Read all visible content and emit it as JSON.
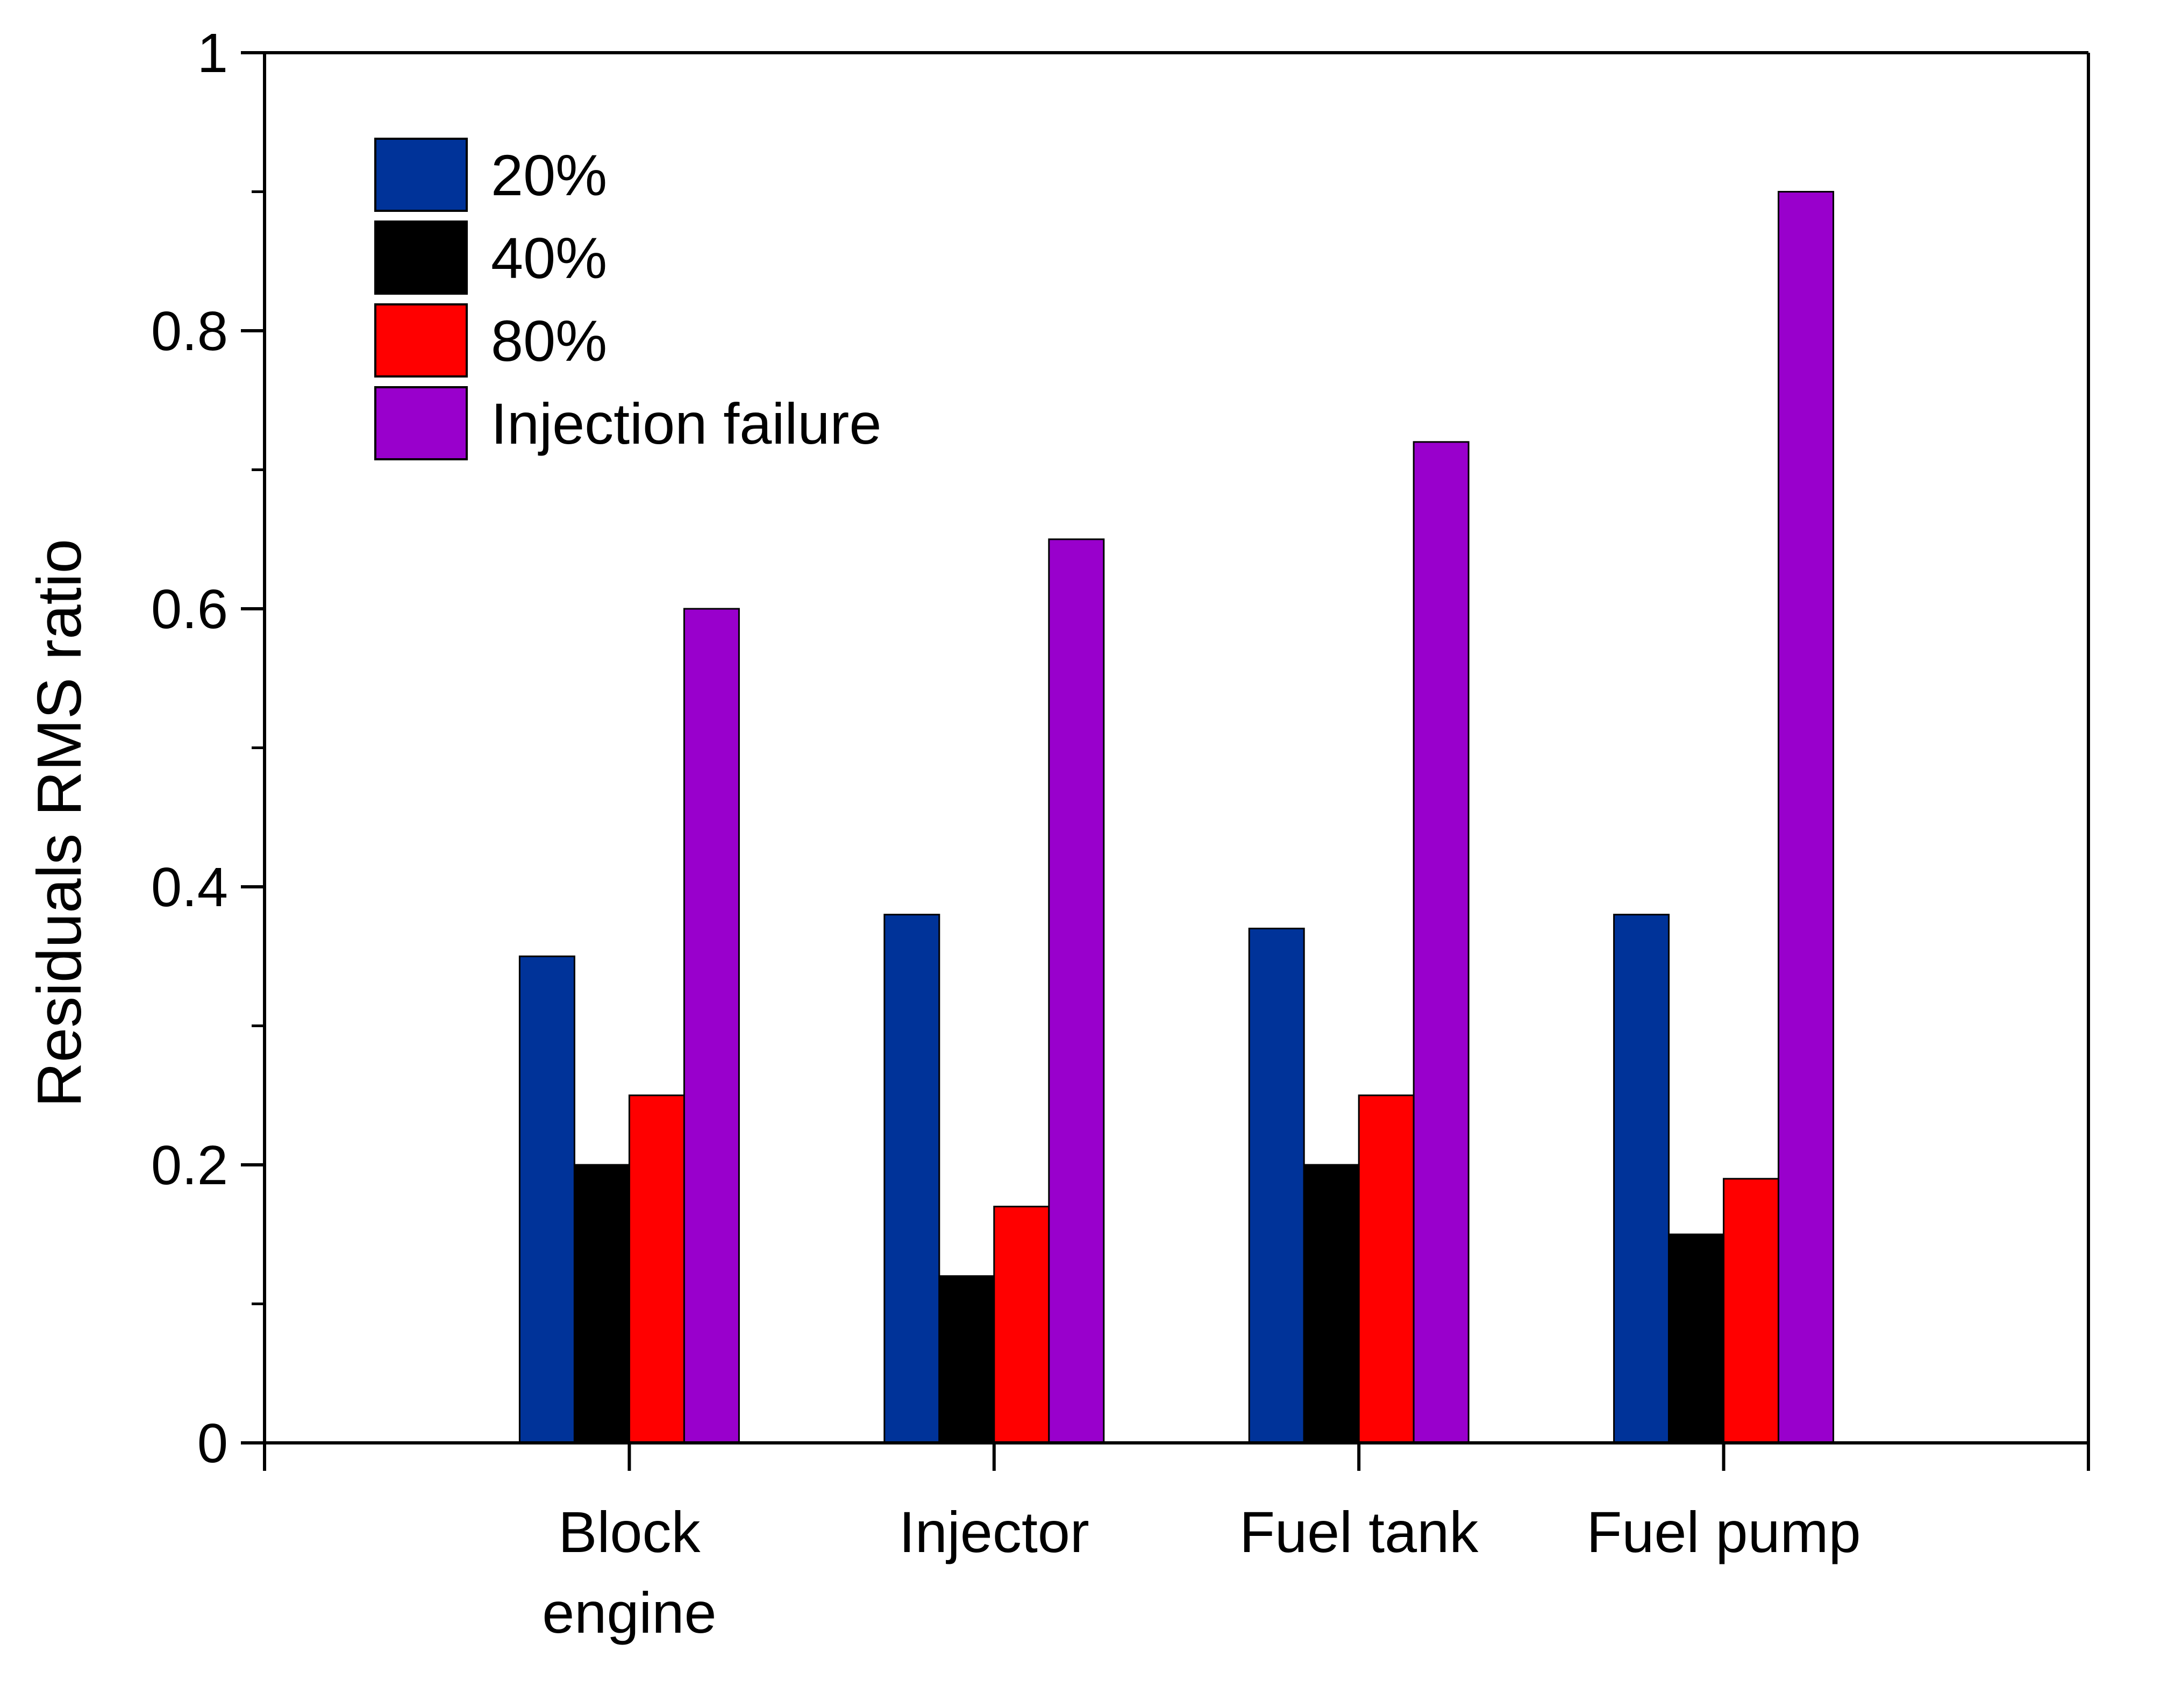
{
  "chart_data": {
    "type": "bar",
    "title": "",
    "xlabel": "",
    "ylabel": "Residuals RMS ratio",
    "ylim": [
      0,
      1
    ],
    "yticks": [
      {
        "value": 0,
        "label": "0"
      },
      {
        "value": 0.2,
        "label": "0.2"
      },
      {
        "value": 0.4,
        "label": "0.4"
      },
      {
        "value": 0.6,
        "label": "0.6"
      },
      {
        "value": 0.8,
        "label": "0.8"
      },
      {
        "value": 1,
        "label": "1"
      }
    ],
    "categories": [
      [
        "Block",
        "engine"
      ],
      [
        "Injector"
      ],
      [
        "Fuel tank"
      ],
      [
        "Fuel pump"
      ]
    ],
    "series": [
      {
        "name": "20%",
        "color": "#003399",
        "values": [
          0.35,
          0.38,
          0.37,
          0.38
        ]
      },
      {
        "name": "40%",
        "color": "#000000",
        "values": [
          0.2,
          0.12,
          0.2,
          0.15
        ]
      },
      {
        "name": "80%",
        "color": "#ff0000",
        "values": [
          0.25,
          0.17,
          0.25,
          0.19
        ]
      },
      {
        "name": "Injection failure",
        "color": "#9900cc",
        "values": [
          0.6,
          0.65,
          0.72,
          0.9
        ]
      }
    ],
    "legend_position": "top-left",
    "grid": false
  }
}
